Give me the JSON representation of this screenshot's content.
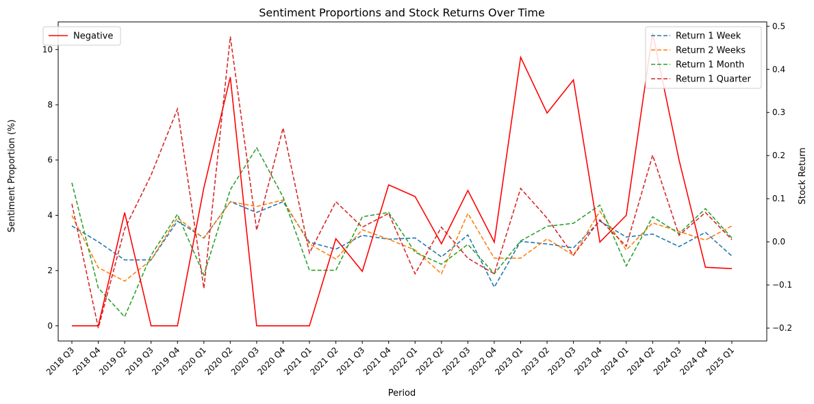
{
  "chart_data": {
    "type": "line",
    "title": "Sentiment Proportions and Stock Returns Over Time",
    "xlabel": "Period",
    "ylabel": "Sentiment Proportion (%)",
    "y2label": "Stock Return",
    "categories": [
      "2018 Q3",
      "2018 Q4",
      "2019 Q2",
      "2019 Q3",
      "2019 Q4",
      "2020 Q1",
      "2020 Q2",
      "2020 Q3",
      "2020 Q4",
      "2021 Q1",
      "2021 Q2",
      "2021 Q3",
      "2021 Q4",
      "2022 Q1",
      "2022 Q2",
      "2022 Q3",
      "2022 Q4",
      "2023 Q1",
      "2023 Q2",
      "2023 Q3",
      "2023 Q4",
      "2024 Q1",
      "2024 Q2",
      "2024 Q3",
      "2024 Q4",
      "2025 Q1"
    ],
    "ylim": [
      -0.55,
      11.0
    ],
    "y2lim": [
      -0.23,
      0.51
    ],
    "yticks": [
      0,
      2,
      4,
      6,
      8,
      10
    ],
    "y2ticks": [
      -0.2,
      -0.1,
      0.0,
      0.1,
      0.2,
      0.3,
      0.4,
      0.5
    ],
    "y2tick_labels": [
      "−0.2",
      "−0.1",
      "0.0",
      "0.1",
      "0.2",
      "0.3",
      "0.4",
      "0.5"
    ],
    "left_series": [
      {
        "name": "Negative",
        "color": "#ff0000",
        "dash": "solid",
        "values": [
          0,
          0,
          4.1,
          0,
          0,
          5.0,
          9.0,
          0,
          0,
          0,
          3.15,
          1.97,
          5.1,
          4.68,
          2.97,
          4.9,
          3.03,
          9.72,
          7.7,
          8.9,
          3.03,
          4.0,
          10.6,
          6.0,
          2.12,
          2.07
        ]
      }
    ],
    "right_series": [
      {
        "name": "Return 1 Week",
        "color": "#1f77b4",
        "dash": "dashed",
        "values": [
          0.037,
          0.0,
          -0.042,
          -0.042,
          0.048,
          0.009,
          0.093,
          0.068,
          0.093,
          -0.001,
          -0.017,
          0.015,
          0.006,
          0.009,
          -0.035,
          0.016,
          -0.105,
          0.001,
          -0.005,
          -0.014,
          0.048,
          0.011,
          0.018,
          -0.011,
          0.022,
          -0.033
        ]
      },
      {
        "name": "Return 2 Weeks",
        "color": "#ff7f0e",
        "dash": "dashed",
        "values": [
          0.061,
          -0.06,
          -0.091,
          -0.042,
          0.056,
          0.008,
          0.093,
          0.082,
          0.097,
          -0.005,
          -0.04,
          0.028,
          0.006,
          -0.019,
          -0.074,
          0.066,
          -0.038,
          -0.038,
          0.007,
          -0.031,
          0.071,
          -0.019,
          0.044,
          0.024,
          0.004,
          0.037
        ]
      },
      {
        "name": "Return 1 Month",
        "color": "#2ca02c",
        "dash": "dashed",
        "values": [
          0.137,
          -0.107,
          -0.174,
          -0.031,
          0.064,
          -0.077,
          0.121,
          0.218,
          0.104,
          -0.066,
          -0.066,
          0.058,
          0.068,
          -0.024,
          -0.052,
          -0.006,
          -0.074,
          0.002,
          0.036,
          0.043,
          0.085,
          -0.056,
          0.058,
          0.019,
          0.077,
          0.009
        ]
      },
      {
        "name": "Return 1 Quarter",
        "color": "#d62728",
        "dash": "dashed",
        "values": [
          0.088,
          -0.2,
          0.03,
          0.155,
          0.308,
          -0.108,
          0.476,
          0.027,
          0.264,
          -0.026,
          0.093,
          0.034,
          0.066,
          -0.074,
          0.034,
          -0.038,
          -0.074,
          0.124,
          0.055,
          -0.031,
          0.051,
          -0.01,
          0.201,
          0.015,
          0.068,
          0.005
        ]
      }
    ],
    "legend_left_position": "top-left",
    "legend_right_position": "top-right",
    "grid": false
  }
}
